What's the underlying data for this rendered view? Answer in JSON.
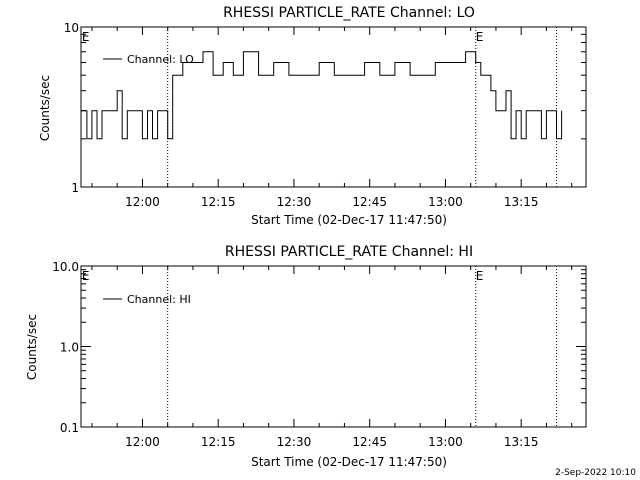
{
  "footer_date": "2-Sep-2022 10:10",
  "chart_data": [
    {
      "type": "line",
      "title": "RHESSI PARTICLE_RATE Channel: LO",
      "xlabel": "Start Time (02-Dec-17 11:47:50)",
      "ylabel": "Counts/sec",
      "yscale": "log",
      "ylim": [
        1,
        10
      ],
      "yticks": [
        1,
        10
      ],
      "ytick_labels": [
        "1",
        "10"
      ],
      "xlim": [
        "11:47:50",
        "13:27:50"
      ],
      "xticks": [
        "12:00",
        "12:15",
        "12:30",
        "12:45",
        "13:00",
        "13:15"
      ],
      "event_lines": [
        "12:05:00",
        "13:06:00",
        "13:22:00"
      ],
      "event_markers": [
        {
          "label": "E",
          "time": "11:48:00"
        },
        {
          "label": "E",
          "time": "13:06:00"
        }
      ],
      "legend_position": "top-left",
      "series": [
        {
          "name": "Channel: LO",
          "x": [
            "11:48:00",
            "11:49:00",
            "11:50:00",
            "11:51:00",
            "11:52:00",
            "11:53:00",
            "11:54:00",
            "11:55:00",
            "11:56:00",
            "11:57:00",
            "11:58:00",
            "11:59:00",
            "12:00:00",
            "12:01:00",
            "12:02:00",
            "12:03:00",
            "12:04:00",
            "12:05:00",
            "12:06:00",
            "12:08:00",
            "12:10:00",
            "12:12:00",
            "12:14:00",
            "12:16:00",
            "12:18:00",
            "12:20:00",
            "12:23:00",
            "12:26:00",
            "12:29:00",
            "12:32:00",
            "12:35:00",
            "12:38:00",
            "12:41:00",
            "12:44:00",
            "12:47:00",
            "12:50:00",
            "12:53:00",
            "12:56:00",
            "12:58:00",
            "13:00:00",
            "13:02:00",
            "13:04:00",
            "13:05:00",
            "13:06:00",
            "13:07:00",
            "13:08:00",
            "13:09:00",
            "13:10:00",
            "13:11:00",
            "13:12:00",
            "13:13:00",
            "13:14:00",
            "13:15:00",
            "13:16:00",
            "13:17:00",
            "13:18:00",
            "13:19:00",
            "13:20:00",
            "13:21:00",
            "13:22:00",
            "13:23:00"
          ],
          "values": [
            3,
            2,
            3,
            2,
            3,
            3,
            3,
            4,
            2,
            3,
            3,
            3,
            2,
            3,
            2,
            3,
            3,
            2,
            5,
            6,
            6,
            7,
            5,
            6,
            5,
            7,
            5,
            6,
            5,
            5,
            6,
            5,
            5,
            6,
            5,
            6,
            5,
            5,
            6,
            6,
            6,
            7,
            7,
            6,
            5,
            5,
            4,
            3,
            3,
            4,
            2,
            3,
            2,
            3,
            3,
            3,
            2,
            3,
            3,
            2,
            3
          ]
        }
      ]
    },
    {
      "type": "line",
      "title": "RHESSI PARTICLE_RATE Channel: HI",
      "xlabel": "Start Time (02-Dec-17 11:47:50)",
      "ylabel": "Counts/sec",
      "yscale": "log",
      "ylim": [
        0.1,
        10
      ],
      "yticks": [
        0.1,
        1,
        10
      ],
      "ytick_labels": [
        "0.1",
        "1.0",
        "10.0"
      ],
      "xlim": [
        "11:47:50",
        "13:27:50"
      ],
      "xticks": [
        "12:00",
        "12:15",
        "12:30",
        "12:45",
        "13:00",
        "13:15"
      ],
      "event_lines": [
        "12:05:00",
        "13:06:00",
        "13:22:00"
      ],
      "event_markers": [
        {
          "label": "E",
          "time": "11:48:00"
        },
        {
          "label": "E",
          "time": "13:06:00"
        }
      ],
      "legend_position": "top-left",
      "series": [
        {
          "name": "Channel: HI",
          "x": [],
          "values": []
        }
      ]
    }
  ]
}
